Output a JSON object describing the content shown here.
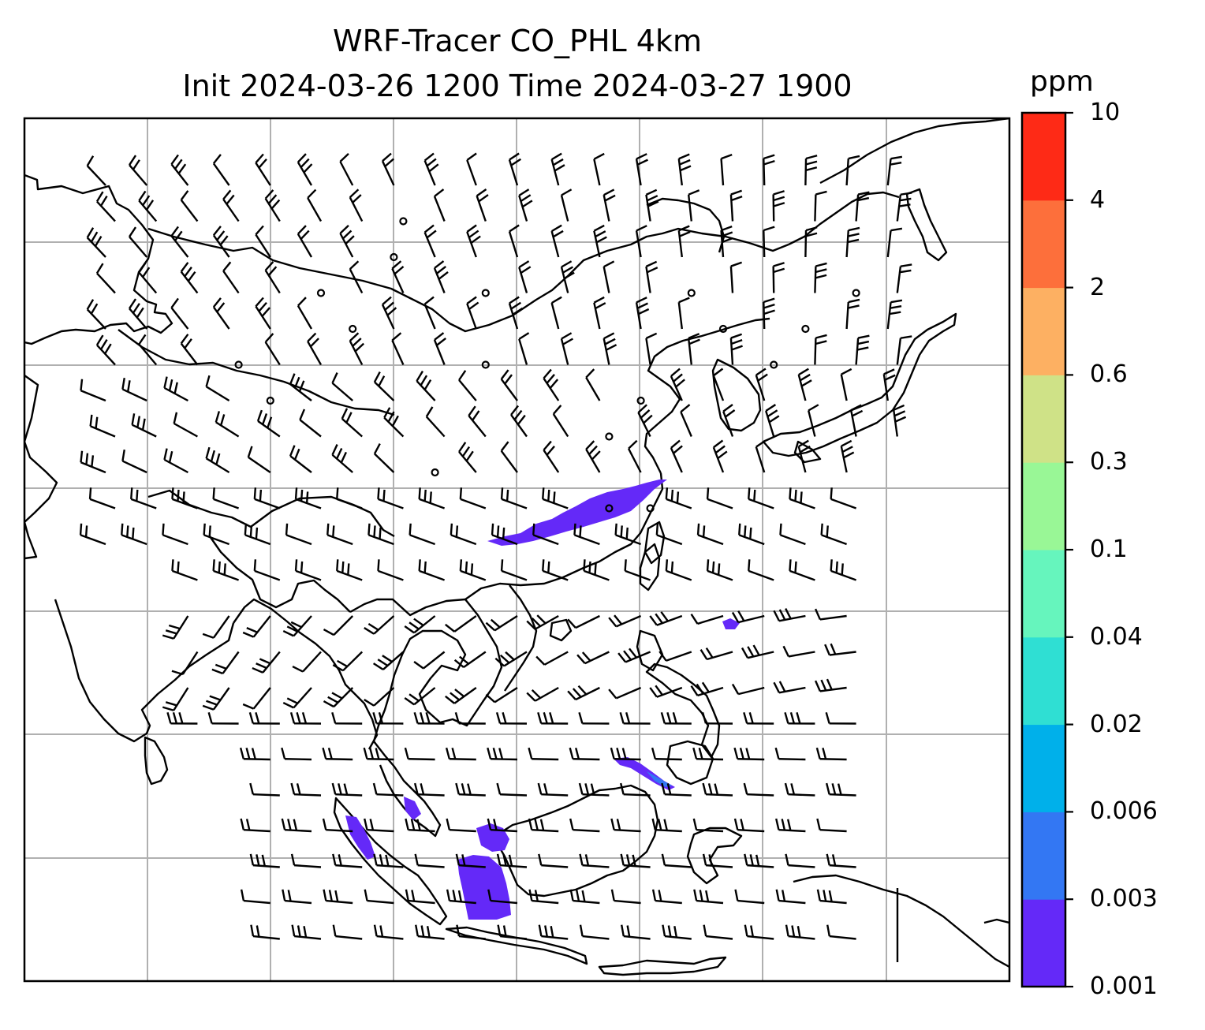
{
  "title": {
    "line1": "WRF-Tracer CO_PHL 4km",
    "line2": "Init 2024-03-26 1200 Time 2024-03-27 1900"
  },
  "colorbar": {
    "unit": "ppm",
    "tick_labels": [
      "0.001",
      "0.003",
      "0.006",
      "0.02",
      "0.04",
      "0.1",
      "0.3",
      "0.6",
      "2",
      "4",
      "10"
    ],
    "colors": [
      "#6429f8",
      "#3377f3",
      "#00b0ea",
      "#2fdfd3",
      "#66f5bd",
      "#99f796",
      "#cfe287",
      "#fdb062",
      "#fd6f3b",
      "#fe2a16"
    ]
  },
  "map": {
    "gridlines": true,
    "frame_color": "#000000",
    "coastline_color": "#000000",
    "grid_color": "#b0b0b0",
    "tracer_color": "#6429f8",
    "tracer_secondary_color": "#3377f3"
  }
}
